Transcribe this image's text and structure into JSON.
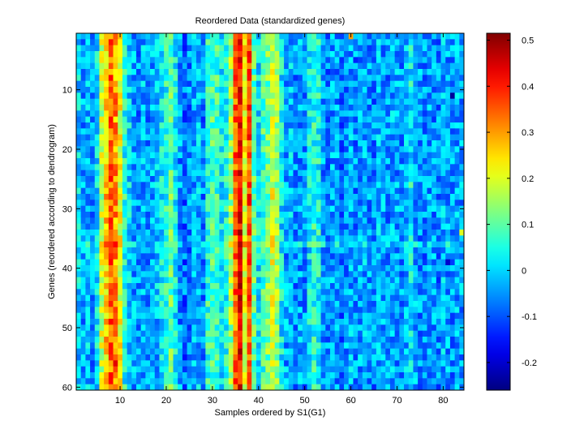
{
  "chart_data": [
    {
      "type": "heatmap",
      "title": "Reordered Data (standardized genes)",
      "xlabel": "Samples ordered by S1(G1)",
      "ylabel": "Genes (reordered according to dendrogram)",
      "x_range": [
        0.5,
        84.5
      ],
      "y_range": [
        0.5,
        60.5
      ],
      "n_cols": 84,
      "n_rows": 60,
      "xticks": [
        10,
        20,
        30,
        40,
        50,
        60,
        70,
        80
      ],
      "yticks": [
        10,
        20,
        30,
        40,
        50,
        60
      ],
      "clim": [
        -0.26,
        0.515
      ],
      "colormap": "jet",
      "column_profile": [
        {
          "x": 1,
          "value": 0.0
        },
        {
          "x": 2,
          "value": -0.04
        },
        {
          "x": 3,
          "value": -0.02
        },
        {
          "x": 4,
          "value": -0.05
        },
        {
          "x": 5,
          "value": 0.02
        },
        {
          "x": 6,
          "value": 0.18
        },
        {
          "x": 7,
          "value": 0.26
        },
        {
          "x": 8,
          "value": 0.34
        },
        {
          "x": 9,
          "value": 0.3
        },
        {
          "x": 10,
          "value": 0.21
        },
        {
          "x": 11,
          "value": 0.05
        },
        {
          "x": 12,
          "value": 0.0
        },
        {
          "x": 13,
          "value": -0.04
        },
        {
          "x": 14,
          "value": -0.06
        },
        {
          "x": 15,
          "value": -0.03
        },
        {
          "x": 16,
          "value": -0.05
        },
        {
          "x": 17,
          "value": -0.04
        },
        {
          "x": 18,
          "value": -0.02
        },
        {
          "x": 19,
          "value": 0.02
        },
        {
          "x": 20,
          "value": 0.05
        },
        {
          "x": 21,
          "value": 0.1
        },
        {
          "x": 22,
          "value": 0.03
        },
        {
          "x": 23,
          "value": -0.05
        },
        {
          "x": 24,
          "value": -0.08
        },
        {
          "x": 25,
          "value": -0.06
        },
        {
          "x": 26,
          "value": -0.03
        },
        {
          "x": 27,
          "value": -0.02
        },
        {
          "x": 28,
          "value": -0.06
        },
        {
          "x": 29,
          "value": 0.06
        },
        {
          "x": 30,
          "value": 0.08
        },
        {
          "x": 31,
          "value": 0.07
        },
        {
          "x": 32,
          "value": 0.02
        },
        {
          "x": 33,
          "value": 0.05
        },
        {
          "x": 34,
          "value": 0.14
        },
        {
          "x": 35,
          "value": 0.34
        },
        {
          "x": 36,
          "value": 0.42
        },
        {
          "x": 37,
          "value": 0.22
        },
        {
          "x": 38,
          "value": 0.36
        },
        {
          "x": 39,
          "value": 0.1
        },
        {
          "x": 40,
          "value": 0.02
        },
        {
          "x": 41,
          "value": 0.08
        },
        {
          "x": 42,
          "value": 0.12
        },
        {
          "x": 43,
          "value": 0.2
        },
        {
          "x": 44,
          "value": 0.15
        },
        {
          "x": 45,
          "value": 0.02
        },
        {
          "x": 46,
          "value": -0.04
        },
        {
          "x": 47,
          "value": -0.02
        },
        {
          "x": 48,
          "value": -0.05
        },
        {
          "x": 49,
          "value": -0.04
        },
        {
          "x": 50,
          "value": -0.06
        },
        {
          "x": 51,
          "value": 0.02
        },
        {
          "x": 52,
          "value": 0.05
        },
        {
          "x": 53,
          "value": 0.04
        },
        {
          "x": 54,
          "value": -0.05
        },
        {
          "x": 55,
          "value": -0.06
        },
        {
          "x": 56,
          "value": -0.04
        },
        {
          "x": 57,
          "value": -0.05
        },
        {
          "x": 58,
          "value": -0.07
        },
        {
          "x": 59,
          "value": -0.05
        },
        {
          "x": 60,
          "value": -0.03
        },
        {
          "x": 61,
          "value": -0.06
        },
        {
          "x": 62,
          "value": -0.04
        },
        {
          "x": 63,
          "value": -0.03
        },
        {
          "x": 64,
          "value": -0.05
        },
        {
          "x": 65,
          "value": -0.06
        },
        {
          "x": 66,
          "value": -0.02
        },
        {
          "x": 67,
          "value": -0.04
        },
        {
          "x": 68,
          "value": -0.05
        },
        {
          "x": 69,
          "value": -0.03
        },
        {
          "x": 70,
          "value": -0.04
        },
        {
          "x": 71,
          "value": -0.05
        },
        {
          "x": 72,
          "value": -0.02
        },
        {
          "x": 73,
          "value": 0.03
        },
        {
          "x": 74,
          "value": -0.04
        },
        {
          "x": 75,
          "value": -0.05
        },
        {
          "x": 76,
          "value": -0.06
        },
        {
          "x": 77,
          "value": -0.04
        },
        {
          "x": 78,
          "value": -0.05
        },
        {
          "x": 79,
          "value": -0.06
        },
        {
          "x": 80,
          "value": -0.03
        },
        {
          "x": 81,
          "value": -0.04
        },
        {
          "x": 82,
          "value": -0.05
        },
        {
          "x": 83,
          "value": -0.03
        },
        {
          "x": 84,
          "value": -0.04
        }
      ],
      "row_36_offset": 0.05,
      "notable_cells": [
        {
          "x": 60,
          "y": 1,
          "value": 0.3
        },
        {
          "x": 36,
          "y": 41,
          "value": 0.48
        },
        {
          "x": 9,
          "y": 56,
          "value": 0.44
        },
        {
          "x": 82,
          "y": 11,
          "value": -0.24
        },
        {
          "x": 81,
          "y": 39,
          "value": -0.2
        },
        {
          "x": 84,
          "y": 34,
          "value": 0.2
        }
      ]
    },
    {
      "type": "colorbar",
      "ticks": [
        -0.2,
        -0.1,
        0,
        0.1,
        0.2,
        0.3,
        0.4,
        0.5
      ],
      "tick_labels": [
        "-0.2",
        "-0.1",
        "0",
        "0.1",
        "0.2",
        "0.3",
        "0.4",
        "0.5"
      ],
      "range": [
        -0.26,
        0.515
      ]
    }
  ]
}
